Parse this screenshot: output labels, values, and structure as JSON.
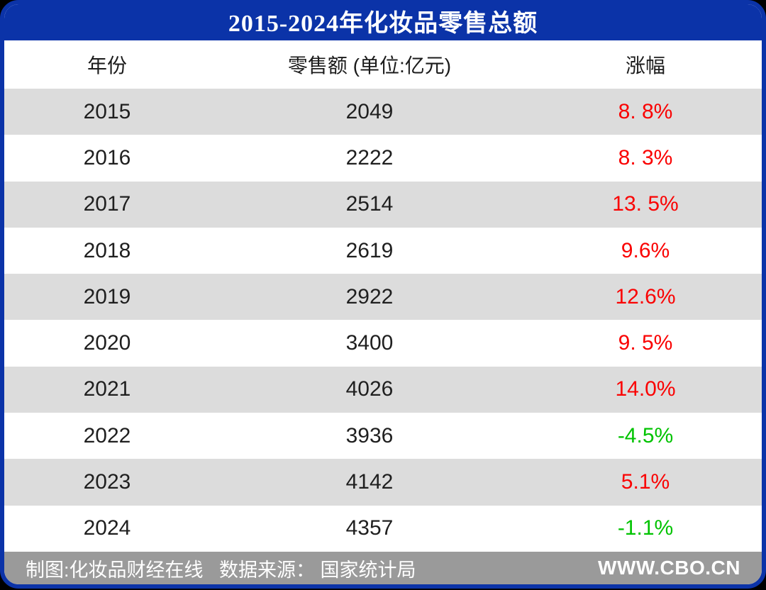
{
  "title": "2015-2024年化妆品零售总额",
  "columns": [
    "年份",
    "零售额 (单位:亿元)",
    "涨幅"
  ],
  "table": {
    "rows": [
      {
        "year": "2015",
        "value": "2049",
        "change": "8. 8%",
        "trend": "up"
      },
      {
        "year": "2016",
        "value": "2222",
        "change": "8. 3%",
        "trend": "up"
      },
      {
        "year": "2017",
        "value": "2514",
        "change": "13. 5%",
        "trend": "up"
      },
      {
        "year": "2018",
        "value": "2619",
        "change": "9.6%",
        "trend": "up"
      },
      {
        "year": "2019",
        "value": "2922",
        "change": "12.6%",
        "trend": "up"
      },
      {
        "year": "2020",
        "value": "3400",
        "change": "9. 5%",
        "trend": "up"
      },
      {
        "year": "2021",
        "value": "4026",
        "change": "14.0%",
        "trend": "up"
      },
      {
        "year": "2022",
        "value": "3936",
        "change": "-4.5%",
        "trend": "down"
      },
      {
        "year": "2023",
        "value": "4142",
        "change": "5.1%",
        "trend": "up"
      },
      {
        "year": "2024",
        "value": "4357",
        "change": "-1.1%",
        "trend": "down"
      }
    ]
  },
  "footer": {
    "credit": "制图:化妆品财经在线   数据来源： 国家统计局",
    "website": "WWW.CBO.CN"
  },
  "colors": {
    "header_blue": "#0b33a8",
    "row_stripe": "#dcdcdc",
    "footer_gray": "#9a9a9a",
    "up_red": "#fa0202",
    "down_green": "#00c300"
  },
  "chart_data": {
    "type": "table",
    "title": "2015-2024年化妆品零售总额",
    "columns": [
      "年份",
      "零售额 (单位:亿元)",
      "涨幅"
    ],
    "years": [
      2015,
      2016,
      2017,
      2018,
      2019,
      2020,
      2021,
      2022,
      2023,
      2024
    ],
    "retail_values_yi_yuan": [
      2049,
      2222,
      2514,
      2619,
      2922,
      3400,
      4026,
      3936,
      4142,
      4357
    ],
    "change_pct": [
      8.8,
      8.3,
      13.5,
      9.6,
      12.6,
      9.5,
      14.0,
      -4.5,
      5.1,
      -1.1
    ],
    "source": "国家统计局",
    "credit": "化妆品财经在线",
    "legend_position": "none",
    "notes": "positive changes shown in red, negative changes shown in green; rows alternate gray/white stripes"
  }
}
